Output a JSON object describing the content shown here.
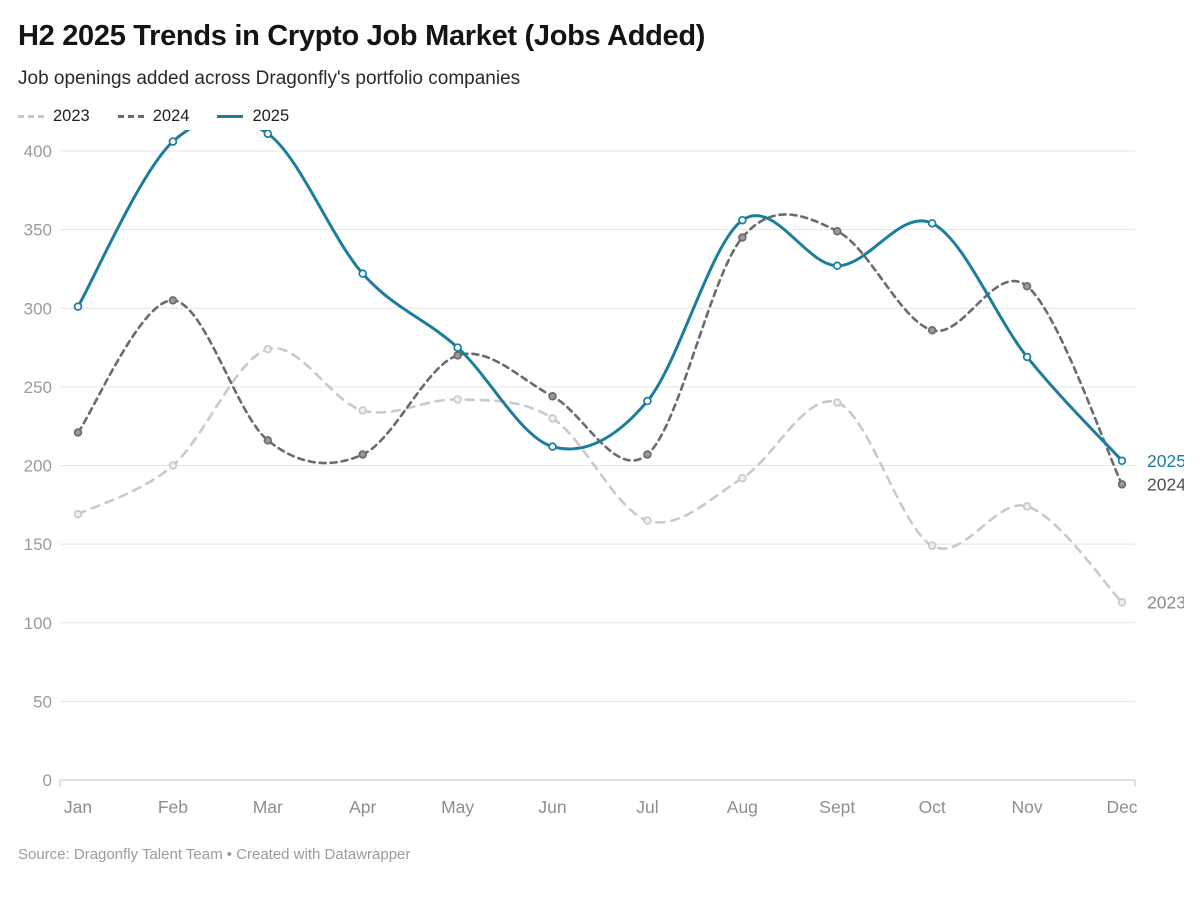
{
  "header": {
    "title": "H2 2025 Trends in Crypto Job Market (Jobs Added)",
    "subtitle": "Job openings added across Dragonfly's portfolio companies"
  },
  "footer": {
    "source": "Source: Dragonfly Talent Team • Created with Datawrapper"
  },
  "colors": {
    "grid": "#e4e4e4",
    "baseline": "#c6c6c6",
    "y_tick_text": "#9b9b9b",
    "x_tick_text": "#8e8e8e"
  },
  "chart_data": {
    "type": "line",
    "title": "H2 2025 Trends in Crypto Job Market (Jobs Added)",
    "x": [
      "Jan",
      "Feb",
      "Mar",
      "Apr",
      "May",
      "Jun",
      "Jul",
      "Aug",
      "Sept",
      "Oct",
      "Nov",
      "Dec"
    ],
    "series": [
      {
        "name": "2023",
        "color": "#c9c9c9",
        "label_color": "#8a8a8a",
        "marker_fill": "#efefef",
        "style": "dashed",
        "dash": "8 7",
        "width": 2.6,
        "values": [
          169,
          200,
          274,
          235,
          242,
          230,
          165,
          192,
          240,
          149,
          174,
          113
        ]
      },
      {
        "name": "2024",
        "color": "#6b6b6b",
        "label_color": "#4f4f4f",
        "marker_fill": "#9a9a9a",
        "style": "dashed",
        "dash": "6 5",
        "width": 2.6,
        "values": [
          221,
          305,
          216,
          207,
          270,
          244,
          207,
          345,
          349,
          286,
          314,
          188
        ]
      },
      {
        "name": "2025",
        "color": "#1c7d9c",
        "label_color": "#1c7d9c",
        "marker_fill": "#ffffff",
        "style": "solid",
        "dash": "",
        "width": 3,
        "values": [
          301,
          406,
          411,
          322,
          275,
          212,
          241,
          356,
          327,
          354,
          269,
          203
        ]
      }
    ],
    "xlabel": "",
    "ylabel": "",
    "ylim": [
      0,
      400
    ],
    "yticks": [
      0,
      50,
      100,
      150,
      200,
      250,
      300,
      350,
      400
    ],
    "grid": true,
    "legend_position": "top-left"
  }
}
